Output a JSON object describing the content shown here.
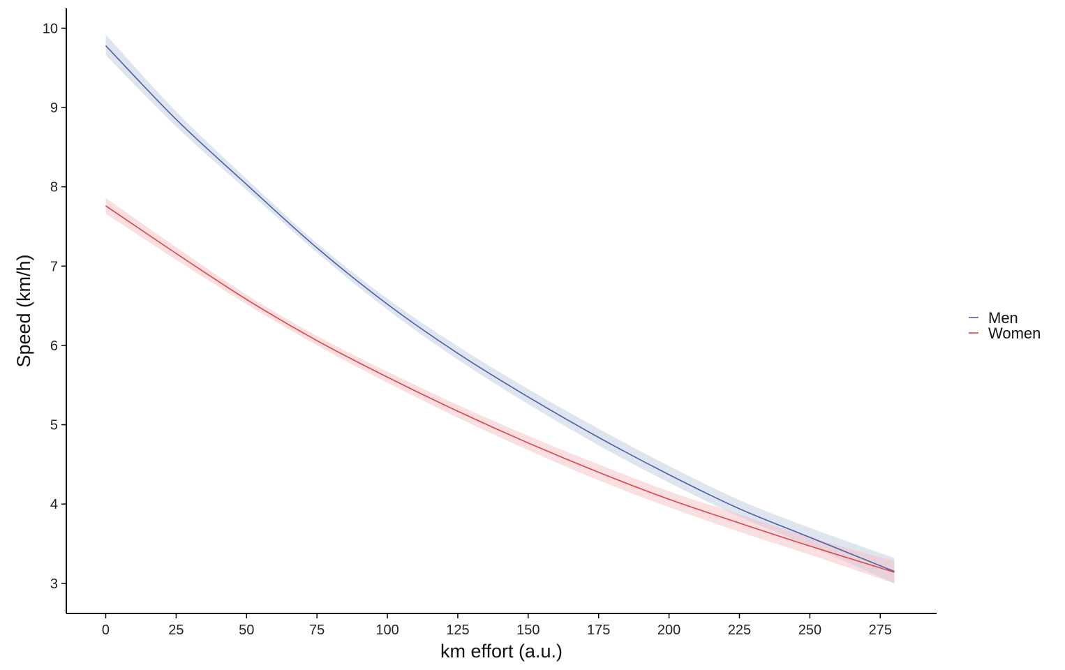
{
  "chart_data": {
    "type": "line",
    "title": "",
    "xlabel": "km effort (a.u.)",
    "ylabel": "Speed (km/h)",
    "xlim": [
      -14,
      295
    ],
    "ylim": [
      2.62,
      10.25
    ],
    "xticks": [
      0,
      25,
      50,
      75,
      100,
      125,
      150,
      175,
      200,
      225,
      250,
      275
    ],
    "yticks": [
      3,
      4,
      5,
      6,
      7,
      8,
      9,
      10
    ],
    "grid": false,
    "legend_position": "right",
    "series": [
      {
        "name": "Men",
        "color": "#4a5fa8",
        "band_color": "#b8c5dc",
        "x": [
          0,
          25,
          50,
          75,
          100,
          125,
          150,
          175,
          200,
          225,
          250,
          280
        ],
        "y": [
          9.78,
          8.85,
          8.03,
          7.23,
          6.52,
          5.9,
          5.35,
          4.84,
          4.37,
          3.94,
          3.58,
          3.15
        ],
        "lower": [
          9.66,
          8.76,
          7.96,
          7.17,
          6.45,
          5.82,
          5.26,
          4.74,
          4.27,
          3.84,
          3.47,
          3.0
        ],
        "upper": [
          9.92,
          8.95,
          8.1,
          7.29,
          6.59,
          5.99,
          5.45,
          4.95,
          4.48,
          4.05,
          3.7,
          3.32
        ]
      },
      {
        "name": "Women",
        "color": "#d9454a",
        "band_color": "#f4b8bc",
        "x": [
          0,
          25,
          50,
          75,
          100,
          125,
          150,
          175,
          200,
          225,
          250,
          280
        ],
        "y": [
          7.76,
          7.16,
          6.58,
          6.06,
          5.6,
          5.17,
          4.77,
          4.4,
          4.06,
          3.76,
          3.47,
          3.14
        ],
        "lower": [
          7.66,
          7.08,
          6.52,
          6.0,
          5.53,
          5.09,
          4.68,
          4.3,
          3.96,
          3.65,
          3.36,
          3.0
        ],
        "upper": [
          7.86,
          7.24,
          6.64,
          6.12,
          5.67,
          5.25,
          4.86,
          4.5,
          4.16,
          3.87,
          3.58,
          3.28
        ]
      }
    ]
  }
}
